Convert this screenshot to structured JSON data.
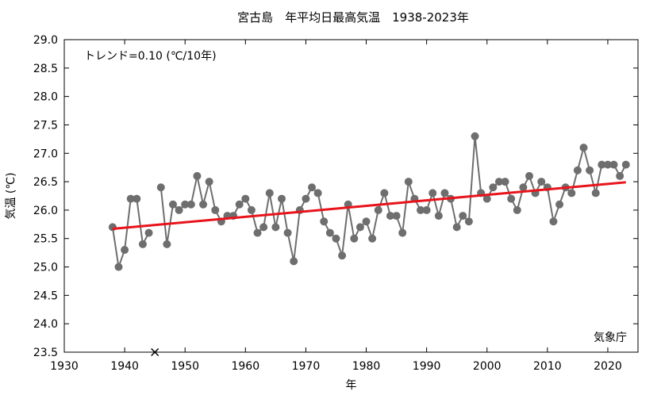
{
  "chart_data": {
    "type": "line",
    "title": "宮古島　年平均日最高気温　1938-2023年",
    "xlabel": "年",
    "ylabel": "気温 (℃)",
    "xlim": [
      1930,
      2025
    ],
    "ylim": [
      23.5,
      29.0
    ],
    "x_ticks": [
      1930,
      1940,
      1950,
      1960,
      1970,
      1980,
      1990,
      2000,
      2010,
      2020
    ],
    "y_ticks": [
      23.5,
      24.0,
      24.5,
      25.0,
      25.5,
      26.0,
      26.5,
      27.0,
      27.5,
      28.0,
      28.5,
      29.0
    ],
    "y_tick_labels": [
      "23.5",
      "24.0",
      "24.5",
      "25.0",
      "25.5",
      "26.0",
      "26.5",
      "27.0",
      "27.5",
      "28.0",
      "28.5",
      "29.0"
    ],
    "grid": false,
    "series": [
      {
        "color": "#6e6e6e",
        "segments": [
          {
            "x": [
              1938,
              1939,
              1940,
              1941,
              1942,
              1943,
              1944
            ],
            "y": [
              25.7,
              25.0,
              25.3,
              26.2,
              26.2,
              25.4,
              25.6
            ]
          },
          {
            "x": [
              1946,
              1947,
              1948,
              1949,
              1950,
              1951,
              1952,
              1953,
              1954,
              1955,
              1956,
              1957,
              1958,
              1959,
              1960,
              1961,
              1962,
              1963,
              1964,
              1965,
              1966,
              1967,
              1968,
              1969,
              1970,
              1971,
              1972,
              1973,
              1974,
              1975,
              1976,
              1977,
              1978,
              1979,
              1980,
              1981,
              1982,
              1983,
              1984,
              1985,
              1986,
              1987,
              1988,
              1989,
              1990,
              1991,
              1992,
              1993,
              1994,
              1995,
              1996,
              1997,
              1998,
              1999,
              2000,
              2001,
              2002,
              2003,
              2004,
              2005,
              2006,
              2007,
              2008,
              2009,
              2010,
              2011,
              2012,
              2013,
              2014,
              2015,
              2016,
              2017,
              2018,
              2019,
              2020,
              2021,
              2022,
              2023
            ],
            "y": [
              26.4,
              25.4,
              26.1,
              26.0,
              26.1,
              26.1,
              26.6,
              26.1,
              26.5,
              26.0,
              25.8,
              25.9,
              25.9,
              26.1,
              26.2,
              26.0,
              25.6,
              25.7,
              26.3,
              25.7,
              26.2,
              25.6,
              25.1,
              26.0,
              26.2,
              26.4,
              26.3,
              25.8,
              25.6,
              25.5,
              25.2,
              26.1,
              25.5,
              25.7,
              25.8,
              25.5,
              26.0,
              26.3,
              25.9,
              25.9,
              25.6,
              26.5,
              26.2,
              26.0,
              26.0,
              26.3,
              25.9,
              26.3,
              26.2,
              25.7,
              25.9,
              25.8,
              27.3,
              26.3,
              26.2,
              26.4,
              26.5,
              26.5,
              26.2,
              26.0,
              26.4,
              26.6,
              26.3,
              26.5,
              26.4,
              25.8,
              26.1,
              26.4,
              26.3,
              26.7,
              27.1,
              26.7,
              26.3,
              26.8,
              26.8,
              26.8,
              26.6,
              26.8
            ]
          }
        ]
      }
    ],
    "trend": {
      "x": [
        1938,
        2023
      ],
      "y": [
        25.67,
        26.49
      ],
      "color": "#e8141c"
    },
    "missing_marker": {
      "x": 1945,
      "y": 23.5
    },
    "annotations": {
      "trend_label": "トレンド=0.10 (℃/10年)",
      "source": "気象庁"
    }
  }
}
